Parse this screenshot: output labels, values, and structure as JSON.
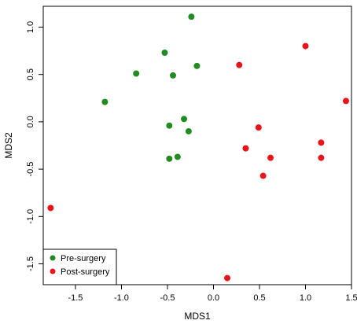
{
  "chart_data": {
    "type": "scatter",
    "xlabel": "MDS1",
    "ylabel": "MDS2",
    "xlim": [
      -1.85,
      1.5
    ],
    "ylim": [
      -1.72,
      1.22
    ],
    "x_ticks": [
      -1.5,
      -1.0,
      -0.5,
      0.0,
      0.5,
      1.0,
      1.5
    ],
    "x_tick_labels": [
      "-1.5",
      "-1.0",
      "-0.5",
      "0.0",
      "0.5",
      "1.0",
      "1.5"
    ],
    "y_ticks": [
      -1.5,
      -1.0,
      -0.5,
      0.0,
      0.5,
      1.0
    ],
    "y_tick_labels": [
      "-1.5",
      "-1.0",
      "-0.5",
      "0.0",
      "0.5",
      "1.0"
    ],
    "grid": false,
    "legend_position": "bottom-left",
    "series": [
      {
        "name": "Pre-surgery",
        "color": "#228B22",
        "points": [
          {
            "x": -0.24,
            "y": 1.11
          },
          {
            "x": -0.53,
            "y": 0.73
          },
          {
            "x": -0.84,
            "y": 0.51
          },
          {
            "x": -0.44,
            "y": 0.49
          },
          {
            "x": -0.18,
            "y": 0.59
          },
          {
            "x": -1.18,
            "y": 0.21
          },
          {
            "x": -0.32,
            "y": 0.03
          },
          {
            "x": -0.48,
            "y": -0.04
          },
          {
            "x": -0.27,
            "y": -0.1
          },
          {
            "x": -0.48,
            "y": -0.39
          },
          {
            "x": -0.39,
            "y": -0.37
          }
        ]
      },
      {
        "name": "Post-surgery",
        "color": "#E8141B",
        "points": [
          {
            "x": 0.28,
            "y": 0.6
          },
          {
            "x": 1.0,
            "y": 0.8
          },
          {
            "x": 1.44,
            "y": 0.22
          },
          {
            "x": 0.49,
            "y": -0.06
          },
          {
            "x": 1.17,
            "y": -0.22
          },
          {
            "x": 0.35,
            "y": -0.28
          },
          {
            "x": 0.62,
            "y": -0.38
          },
          {
            "x": 1.17,
            "y": -0.38
          },
          {
            "x": 0.54,
            "y": -0.57
          },
          {
            "x": -1.77,
            "y": -0.91
          },
          {
            "x": 0.15,
            "y": -1.65
          }
        ]
      }
    ]
  }
}
